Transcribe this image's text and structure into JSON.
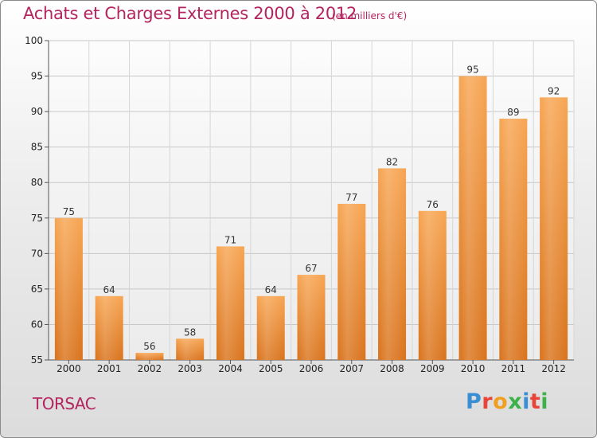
{
  "header": {
    "title": "Achats et Charges Externes 2000 à 2012",
    "unit": "(en milliers d'€)"
  },
  "footer": {
    "town": "TORSAC",
    "logo_letters": [
      "P",
      "r",
      "o",
      "x",
      "i",
      "t",
      "i"
    ],
    "logo_colors": [
      "#3a8fd4",
      "#e8443a",
      "#f0a020",
      "#3db24a",
      "#3a8fd4",
      "#e8443a",
      "#3db24a"
    ]
  },
  "colors": {
    "accent": "#b4245e",
    "bar_top": "#f7a552",
    "bar_bottom": "#d9731c"
  },
  "chart_data": {
    "type": "bar",
    "title": "Achats et Charges Externes 2000 à 2012",
    "subtitle": "(en milliers d'€)",
    "categories": [
      "2000",
      "2001",
      "2002",
      "2003",
      "2004",
      "2005",
      "2006",
      "2007",
      "2008",
      "2009",
      "2010",
      "2011",
      "2012"
    ],
    "values": [
      75,
      64,
      56,
      58,
      71,
      64,
      67,
      77,
      82,
      76,
      95,
      89,
      92
    ],
    "ylim": [
      55,
      100
    ],
    "yticks": [
      55,
      60,
      65,
      70,
      75,
      80,
      85,
      90,
      95,
      100
    ],
    "grid": true,
    "legend": "none"
  }
}
